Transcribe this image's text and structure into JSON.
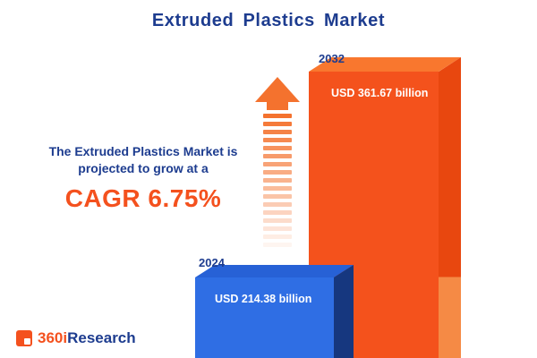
{
  "title": "Extruded Plastics Market",
  "description": {
    "line1": "The Extruded Plastics Market is",
    "line2": "projected to grow at a",
    "cagr": "CAGR 6.75%"
  },
  "logo": {
    "prefix": "360i",
    "suffix": "Research"
  },
  "chart_data": {
    "type": "bar",
    "title": "Extruded Plastics Market",
    "categories": [
      "2024",
      "2032"
    ],
    "values": [
      214.38,
      361.67
    ],
    "unit": "USD billion",
    "value_labels": [
      "USD 214.38 billion",
      "USD 361.67 billion"
    ],
    "cagr_percent": 6.75,
    "annotation": "The Extruded Plastics Market is projected to grow at a CAGR 6.75%",
    "legend_position": "none",
    "grid": false,
    "colors": {
      "bar_2024": "#2f6ee4",
      "bar_2032": "#f4521c",
      "accent_navy": "#1d3c8f",
      "accent_orange": "#f4511e"
    }
  }
}
